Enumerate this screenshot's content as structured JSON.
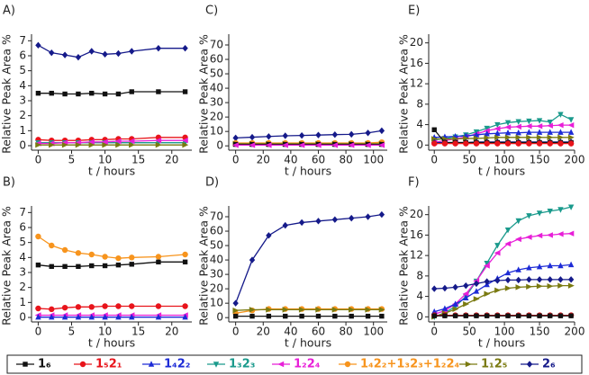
{
  "chart_data": [
    {
      "type": "line",
      "label": "A)",
      "ylabel": "Relative Peak Area %",
      "xlabel": "t / hours",
      "x": [
        0,
        2,
        4,
        6,
        8,
        10,
        12,
        14,
        18,
        22
      ],
      "xlim": [
        -1,
        23
      ],
      "xticks": [
        0,
        5,
        10,
        15,
        20
      ],
      "ylim": [
        -0.3,
        7.2
      ],
      "yticks": [
        0,
        1,
        2,
        3,
        4,
        5,
        6,
        7
      ],
      "series": [
        {
          "color": "#111111",
          "marker": "square",
          "values": [
            3.5,
            3.5,
            3.45,
            3.45,
            3.5,
            3.45,
            3.45,
            3.6,
            3.6,
            3.6
          ]
        },
        {
          "color": "#e8141b",
          "marker": "circle",
          "values": [
            0.4,
            0.35,
            0.35,
            0.35,
            0.4,
            0.4,
            0.45,
            0.45,
            0.55,
            0.55
          ]
        },
        {
          "color": "#1a9a8c",
          "marker": "tri-down",
          "values": [
            0.2,
            0.2,
            0.2,
            0.2,
            0.2,
            0.2,
            0.2,
            0.2,
            0.2,
            0.2
          ]
        },
        {
          "color": "#e81fd8",
          "marker": "tri-left",
          "values": [
            0.15,
            0.15,
            0.2,
            0.2,
            0.25,
            0.25,
            0.3,
            0.3,
            0.35,
            0.35
          ]
        },
        {
          "color": "#7a7a10",
          "marker": "tri-right",
          "values": [
            0.05,
            0.05,
            0.05,
            0.05,
            0.05,
            0.05,
            0.05,
            0.05,
            0.05,
            0.05
          ]
        },
        {
          "color": "#151a8a",
          "marker": "diamond",
          "values": [
            6.7,
            6.2,
            6.05,
            5.9,
            6.3,
            6.1,
            6.15,
            6.3,
            6.5,
            6.5
          ]
        }
      ]
    },
    {
      "type": "line",
      "label": "B)",
      "ylabel": "Relative Peak Area %",
      "xlabel": "t / hours",
      "x": [
        0,
        2,
        4,
        6,
        8,
        10,
        12,
        14,
        18,
        22
      ],
      "xlim": [
        -1,
        23
      ],
      "xticks": [
        0,
        5,
        10,
        15,
        20
      ],
      "ylim": [
        -0.3,
        7.2
      ],
      "yticks": [
        0,
        1,
        2,
        3,
        4,
        5,
        6,
        7
      ],
      "series": [
        {
          "color": "#f7941d",
          "marker": "circle",
          "values": [
            5.4,
            4.8,
            4.5,
            4.3,
            4.2,
            4.05,
            3.95,
            4.0,
            4.05,
            4.2
          ]
        },
        {
          "color": "#111111",
          "marker": "square",
          "values": [
            3.5,
            3.4,
            3.4,
            3.4,
            3.45,
            3.45,
            3.5,
            3.55,
            3.7,
            3.7
          ]
        },
        {
          "color": "#e8141b",
          "marker": "circle",
          "values": [
            0.6,
            0.55,
            0.65,
            0.7,
            0.7,
            0.75,
            0.75,
            0.75,
            0.75,
            0.75
          ]
        },
        {
          "color": "#e81fd8",
          "marker": "tri-left",
          "values": [
            0.15,
            0.15,
            0.15,
            0.15,
            0.15,
            0.15,
            0.15,
            0.15,
            0.15,
            0.15
          ]
        },
        {
          "color": "#1d2bd6",
          "marker": "tri-up",
          "values": [
            0.02,
            0.02,
            0.02,
            0.02,
            0.02,
            0.02,
            0.02,
            0.02,
            0.02,
            0.02
          ]
        }
      ]
    },
    {
      "type": "line",
      "label": "C)",
      "ylabel": "Relative Peak Area %",
      "xlabel": "t / hours",
      "x": [
        0,
        12,
        24,
        36,
        48,
        60,
        72,
        84,
        96,
        106
      ],
      "xlim": [
        -5,
        110
      ],
      "xticks": [
        0,
        20,
        40,
        60,
        80,
        100
      ],
      "ylim": [
        -3,
        75
      ],
      "yticks": [
        0,
        10,
        20,
        30,
        40,
        50,
        60,
        70
      ],
      "series": [
        {
          "color": "#151a8a",
          "marker": "diamond",
          "values": [
            5.5,
            6,
            6.5,
            7,
            7.2,
            7.5,
            7.8,
            8,
            9,
            10.5
          ]
        },
        {
          "color": "#f7941d",
          "marker": "circle",
          "values": [
            2,
            2,
            2,
            2,
            2,
            2,
            2,
            2,
            2,
            2.5
          ]
        },
        {
          "color": "#7a7a10",
          "marker": "tri-right",
          "values": [
            1.5,
            1.5,
            1.5,
            1.5,
            1.5,
            1.5,
            1.5,
            1.5,
            1.5,
            1.5
          ]
        },
        {
          "color": "#111111",
          "marker": "square",
          "values": [
            1,
            1,
            1,
            1,
            1,
            1,
            1,
            1,
            1,
            1
          ]
        },
        {
          "color": "#e81fd8",
          "marker": "tri-left",
          "values": [
            0.5,
            0.5,
            0.5,
            0.5,
            0.5,
            0.5,
            0.5,
            0.5,
            0.5,
            0.5
          ]
        }
      ]
    },
    {
      "type": "line",
      "label": "D)",
      "ylabel": "Relative Peak Area %",
      "xlabel": "t / hours",
      "x": [
        0,
        12,
        24,
        36,
        48,
        60,
        72,
        84,
        96,
        106
      ],
      "xlim": [
        -5,
        110
      ],
      "xticks": [
        0,
        20,
        40,
        60,
        80,
        100
      ],
      "ylim": [
        -3,
        75
      ],
      "yticks": [
        0,
        10,
        20,
        30,
        40,
        50,
        60,
        70
      ],
      "series": [
        {
          "color": "#151a8a",
          "marker": "diamond",
          "values": [
            10,
            40,
            57,
            64,
            66,
            67,
            68,
            69,
            70,
            71.5
          ]
        },
        {
          "color": "#f7941d",
          "marker": "circle",
          "values": [
            3,
            5,
            6,
            6,
            6,
            6,
            6,
            6,
            6,
            6
          ]
        },
        {
          "color": "#7a7a10",
          "marker": "tri-right",
          "values": [
            5,
            5.5,
            5.5,
            5.5,
            5.5,
            5.5,
            5.5,
            5.5,
            5.5,
            5.5
          ]
        },
        {
          "color": "#111111",
          "marker": "square",
          "values": [
            1,
            1,
            1,
            1,
            1,
            1,
            1,
            1,
            1,
            1
          ]
        }
      ]
    },
    {
      "type": "line",
      "label": "E)",
      "ylabel": "Relative Peak Area %",
      "xlabel": "t / hours",
      "x": [
        0,
        15,
        30,
        45,
        60,
        75,
        90,
        105,
        120,
        135,
        150,
        165,
        180,
        195
      ],
      "xlim": [
        -8,
        200
      ],
      "xticks": [
        0,
        50,
        100,
        150,
        200
      ],
      "ylim": [
        -1,
        21
      ],
      "yticks": [
        0,
        4,
        8,
        12,
        16,
        20
      ],
      "series": [
        {
          "color": "#1a9a8c",
          "marker": "tri-down",
          "values": [
            1,
            1.3,
            1.6,
            2,
            2.6,
            3.3,
            4,
            4.4,
            4.6,
            4.7,
            4.8,
            4.5,
            6,
            5
          ]
        },
        {
          "color": "#e81fd8",
          "marker": "tri-left",
          "values": [
            0.5,
            0.9,
            1.2,
            1.6,
            2.2,
            2.8,
            3.2,
            3.5,
            3.6,
            3.7,
            3.7,
            3.8,
            3.9,
            3.9
          ]
        },
        {
          "color": "#1d2bd6",
          "marker": "tri-up",
          "values": [
            1.5,
            1.6,
            1.7,
            1.8,
            2,
            2.2,
            2.3,
            2.4,
            2.4,
            2.5,
            2.5,
            2.5,
            2.5,
            2.5
          ]
        },
        {
          "color": "#7a7a10",
          "marker": "tri-right",
          "values": [
            1.2,
            1.2,
            1.2,
            1.3,
            1.3,
            1.4,
            1.5,
            1.5,
            1.5,
            1.5,
            1.5,
            1.5,
            1.5,
            1.5
          ]
        },
        {
          "color": "#151a8a",
          "marker": "diamond",
          "values": [
            0.5,
            0.5,
            0.5,
            0.5,
            0.6,
            0.6,
            0.6,
            0.6,
            0.6,
            0.6,
            0.6,
            0.6,
            0.6,
            0.6
          ]
        },
        {
          "color": "#111111",
          "marker": "square",
          "values": [
            3,
            0.5,
            0.5,
            0.5,
            0.5,
            0.5,
            0.5,
            0.5,
            0.5,
            0.5,
            0.5,
            0.5,
            0.5,
            0.5
          ]
        },
        {
          "color": "#e8141b",
          "marker": "circle",
          "values": [
            0.3,
            0.3,
            0.3,
            0.3,
            0.3,
            0.3,
            0.3,
            0.3,
            0.3,
            0.3,
            0.3,
            0.3,
            0.3,
            0.3
          ]
        }
      ]
    },
    {
      "type": "line",
      "label": "F)",
      "ylabel": "Relative Peak Area %",
      "xlabel": "t / hours",
      "x": [
        0,
        15,
        30,
        45,
        60,
        75,
        90,
        105,
        120,
        135,
        150,
        165,
        180,
        195
      ],
      "xlim": [
        -8,
        200
      ],
      "xticks": [
        0,
        50,
        100,
        150,
        200
      ],
      "ylim": [
        -1,
        21
      ],
      "yticks": [
        0,
        4,
        8,
        12,
        16,
        20
      ],
      "series": [
        {
          "color": "#1a9a8c",
          "marker": "tri-down",
          "values": [
            0,
            0.8,
            2,
            4,
            7,
            10.5,
            14,
            17,
            18.8,
            19.8,
            20.3,
            20.7,
            21,
            21.5
          ]
        },
        {
          "color": "#e81fd8",
          "marker": "tri-left",
          "values": [
            0.5,
            1.2,
            2.5,
            4.5,
            7,
            10,
            12.5,
            14.3,
            15.2,
            15.6,
            15.9,
            16,
            16.2,
            16.3
          ]
        },
        {
          "color": "#1d2bd6",
          "marker": "tri-up",
          "values": [
            1,
            1.6,
            2.5,
            3.7,
            5,
            6.3,
            7.5,
            8.6,
            9.2,
            9.6,
            9.8,
            10,
            10,
            10.2
          ]
        },
        {
          "color": "#151a8a",
          "marker": "diamond",
          "values": [
            5.5,
            5.6,
            5.8,
            6.1,
            6.5,
            6.9,
            7.1,
            7.2,
            7.2,
            7.3,
            7.3,
            7.3,
            7.3,
            7.3
          ]
        },
        {
          "color": "#7a7a10",
          "marker": "tri-right",
          "values": [
            0,
            0.7,
            1.5,
            2.5,
            3.5,
            4.5,
            5.2,
            5.6,
            5.8,
            5.9,
            6,
            6,
            6.1,
            6.1
          ]
        },
        {
          "color": "#e8141b",
          "marker": "circle",
          "values": [
            0.3,
            0.3,
            0.3,
            0.3,
            0.3,
            0.3,
            0.3,
            0.3,
            0.3,
            0.3,
            0.3,
            0.3,
            0.3,
            0.3
          ]
        },
        {
          "color": "#111111",
          "marker": "square",
          "values": [
            0.2,
            0.2,
            0.2,
            0.2,
            0.2,
            0.2,
            0.2,
            0.2,
            0.2,
            0.2,
            0.2,
            0.2,
            0.2,
            0.2
          ]
        }
      ]
    }
  ],
  "legend": [
    {
      "name": "1₆",
      "color": "#111111",
      "marker": "square"
    },
    {
      "name": "1₅2₁",
      "color": "#e8141b",
      "marker": "circle"
    },
    {
      "name": "1₄2₂",
      "color": "#1d2bd6",
      "marker": "tri-up"
    },
    {
      "name": "1₃2₃",
      "color": "#1a9a8c",
      "marker": "tri-down"
    },
    {
      "name": "1₂2₄",
      "color": "#e81fd8",
      "marker": "tri-left"
    },
    {
      "name": "1₄2₂+1₃2₃+1₂2₄",
      "color": "#f7941d",
      "marker": "circle"
    },
    {
      "name": "1₁2₅",
      "color": "#7a7a10",
      "marker": "tri-right"
    },
    {
      "name": "2₆",
      "color": "#151a8a",
      "marker": "diamond"
    }
  ]
}
